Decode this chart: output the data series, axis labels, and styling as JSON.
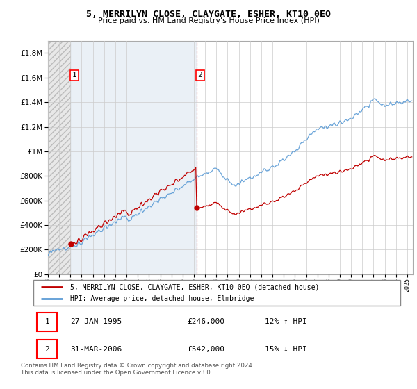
{
  "title": "5, MERRILYN CLOSE, CLAYGATE, ESHER, KT10 0EQ",
  "subtitle": "Price paid vs. HM Land Registry's House Price Index (HPI)",
  "ylabel_ticks": [
    "£0",
    "£200K",
    "£400K",
    "£600K",
    "£800K",
    "£1M",
    "£1.2M",
    "£1.4M",
    "£1.6M",
    "£1.8M"
  ],
  "ytick_values": [
    0,
    200000,
    400000,
    600000,
    800000,
    1000000,
    1200000,
    1400000,
    1600000,
    1800000
  ],
  "ylim": [
    0,
    1900000
  ],
  "x_start_year": 1993,
  "x_end_year": 2025.5,
  "hpi_color": "#5b9bd5",
  "price_color": "#c00000",
  "transaction1_year": 1995.07,
  "transaction1_price": 246000,
  "transaction2_year": 2006.25,
  "transaction2_price": 542000,
  "legend_line1": "5, MERRILYN CLOSE, CLAYGATE, ESHER, KT10 0EQ (detached house)",
  "legend_line2": "HPI: Average price, detached house, Elmbridge",
  "table_row1": [
    "1",
    "27-JAN-1995",
    "£246,000",
    "12% ↑ HPI"
  ],
  "table_row2": [
    "2",
    "31-MAR-2006",
    "£542,000",
    "15% ↓ HPI"
  ],
  "footer": "Contains HM Land Registry data © Crown copyright and database right 2024.\nThis data is licensed under the Open Government Licence v3.0.",
  "grid_color": "#cccccc",
  "hatch_bg_color": "#dce6f1",
  "pre_hatch_color": "#d0d0d0"
}
